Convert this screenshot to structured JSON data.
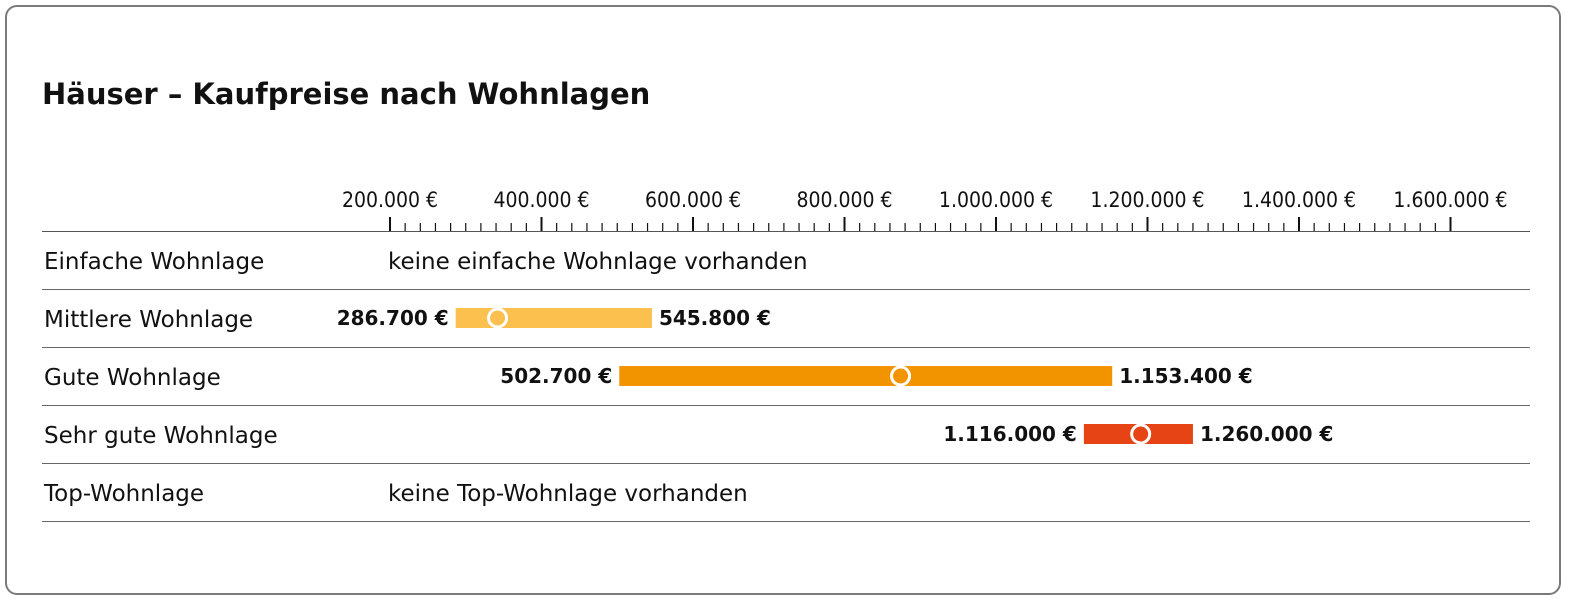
{
  "chart_data": {
    "type": "range-bar",
    "title": "Häuser – Kaufpreise nach Wohnlagen",
    "axis": {
      "min": 150000,
      "max": 1650000,
      "major_ticks": [
        200000,
        400000,
        600000,
        800000,
        1000000,
        1200000,
        1400000,
        1600000
      ],
      "tick_labels": [
        "200.000 €",
        "400.000 €",
        "600.000 €",
        "800.000 €",
        "1.000.000 €",
        "1.200.000 €",
        "1.400.000 €",
        "1.600.000 €"
      ],
      "minor_tick_step": 20000
    },
    "rows": [
      {
        "label": "Einfache Wohnlage",
        "note": "keine einfache Wohnlage vorhanden"
      },
      {
        "label": "Mittlere Wohnlage",
        "min": 286700,
        "max": 545800,
        "marker": 342000,
        "min_label": "286.700 €",
        "max_label": "545.800 €",
        "color": "#FBC04E"
      },
      {
        "label": "Gute Wohnlage",
        "min": 502700,
        "max": 1153400,
        "marker": 874000,
        "min_label": "502.700 €",
        "max_label": "1.153.400 €",
        "color": "#F29400"
      },
      {
        "label": "Sehr gute Wohnlage",
        "min": 1116000,
        "max": 1260000,
        "marker": 1191000,
        "min_label": "1.116.000 €",
        "max_label": "1.260.000 €",
        "color": "#E64415"
      },
      {
        "label": "Top-Wohnlage",
        "note": "keine Top-Wohnlage vorhanden"
      }
    ]
  }
}
